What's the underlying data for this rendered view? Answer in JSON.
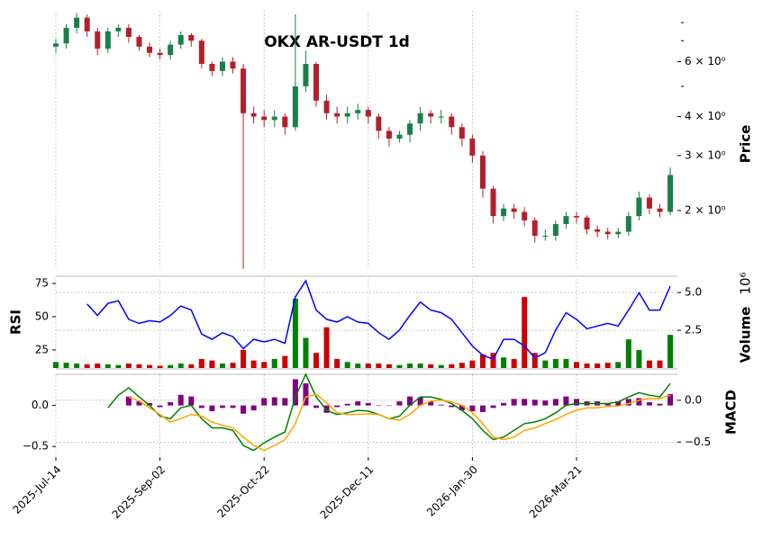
{
  "chart_data": [
    {
      "type": "candlestick",
      "title": "OKX AR-USDT 1d",
      "ylabel": "Price",
      "log_scale": true,
      "grid": true,
      "up_color": "#1a7f4a",
      "down_color": "#b3202a",
      "x": [
        "2025-Jul-14",
        "2025-Jul-19",
        "2025-Jul-24",
        "2025-Jul-29",
        "2025-Aug-03",
        "2025-Aug-08",
        "2025-Aug-13",
        "2025-Aug-18",
        "2025-Aug-23",
        "2025-Aug-28",
        "2025-Sep-02",
        "2025-Sep-07",
        "2025-Sep-12",
        "2025-Sep-17",
        "2025-Sep-22",
        "2025-Sep-27",
        "2025-Oct-02",
        "2025-Oct-07",
        "2025-Oct-12",
        "2025-Oct-17",
        "2025-Oct-22",
        "2025-Oct-27",
        "2025-Nov-01",
        "2025-Nov-06",
        "2025-Nov-11",
        "2025-Nov-16",
        "2025-Nov-21",
        "2025-Nov-26",
        "2025-Dec-01",
        "2025-Dec-06",
        "2025-Dec-11",
        "2025-Dec-16",
        "2025-Dec-21",
        "2025-Dec-26",
        "2025-Dec-31",
        "2026-Jan-05",
        "2026-Jan-10",
        "2026-Jan-15",
        "2026-Jan-20",
        "2026-Jan-25",
        "2026-Jan-30",
        "2026-Feb-04",
        "2026-Feb-09",
        "2026-Feb-14",
        "2026-Feb-19",
        "2026-Feb-24",
        "2026-Mar-01",
        "2026-Mar-06",
        "2026-Mar-11",
        "2026-Mar-16",
        "2026-Mar-21",
        "2026-Mar-26",
        "2026-Mar-31",
        "2026-Apr-05",
        "2026-Apr-10",
        "2026-Apr-15",
        "2026-Apr-20",
        "2026-Apr-25",
        "2026-Apr-30",
        "2026-May-05"
      ],
      "xticks": [
        "2025-Jul-14",
        "2025-Sep-02",
        "2025-Oct-22",
        "2025-Dec-11",
        "2026-Jan-30",
        "2026-Mar-21"
      ],
      "open": [
        6.7,
        6.86,
        7.7,
        8.3,
        7.5,
        6.6,
        7.5,
        7.7,
        7.2,
        6.7,
        6.4,
        6.3,
        6.8,
        7.3,
        7.0,
        5.9,
        5.6,
        6.0,
        5.7,
        4.1,
        4.0,
        3.9,
        4.0,
        3.7,
        5.0,
        5.9,
        4.5,
        4.1,
        4.0,
        4.1,
        4.2,
        4.0,
        3.6,
        3.4,
        3.5,
        3.8,
        4.1,
        4.0,
        4.0,
        3.7,
        3.4,
        3.0,
        2.35,
        1.92,
        2.03,
        1.98,
        1.86,
        1.66,
        1.66,
        1.81,
        1.92,
        1.9,
        1.74,
        1.71,
        1.68,
        1.71,
        1.92,
        2.2,
        2.03,
        1.98
      ],
      "high": [
        7.1,
        7.9,
        8.6,
        8.5,
        7.7,
        7.7,
        7.9,
        7.9,
        7.3,
        6.9,
        6.6,
        7.0,
        7.5,
        7.4,
        7.1,
        6.0,
        6.2,
        6.2,
        5.9,
        4.3,
        4.2,
        4.2,
        4.1,
        8.5,
        6.5,
        6.0,
        4.7,
        4.3,
        4.3,
        4.4,
        4.3,
        4.1,
        3.7,
        3.6,
        3.9,
        4.3,
        4.2,
        4.2,
        4.1,
        3.8,
        3.5,
        3.1,
        2.4,
        2.1,
        2.1,
        2.05,
        1.9,
        1.74,
        1.86,
        1.98,
        1.98,
        1.93,
        1.79,
        1.76,
        1.76,
        1.98,
        2.3,
        2.25,
        2.1,
        2.75
      ],
      "low": [
        6.4,
        6.6,
        7.4,
        7.2,
        6.3,
        6.4,
        7.2,
        6.9,
        6.5,
        6.2,
        6.1,
        6.1,
        6.6,
        6.7,
        5.7,
        5.4,
        5.4,
        5.5,
        1.3,
        3.8,
        3.7,
        3.7,
        3.5,
        3.6,
        4.8,
        4.3,
        3.9,
        3.8,
        3.8,
        3.9,
        3.8,
        3.4,
        3.2,
        3.3,
        3.3,
        3.6,
        3.8,
        3.8,
        3.5,
        3.2,
        2.85,
        2.2,
        1.82,
        1.85,
        1.88,
        1.78,
        1.58,
        1.6,
        1.6,
        1.75,
        1.82,
        1.68,
        1.64,
        1.62,
        1.63,
        1.66,
        1.86,
        1.95,
        1.9,
        1.93
      ],
      "close": [
        6.86,
        7.7,
        8.3,
        7.5,
        6.6,
        7.5,
        7.7,
        7.2,
        6.7,
        6.4,
        6.3,
        6.8,
        7.3,
        7.0,
        5.9,
        5.6,
        6.0,
        5.7,
        4.1,
        4.0,
        3.9,
        4.0,
        3.7,
        5.0,
        5.9,
        4.5,
        4.1,
        4.0,
        4.1,
        4.2,
        4.0,
        3.6,
        3.4,
        3.5,
        3.8,
        4.1,
        4.0,
        4.0,
        3.7,
        3.4,
        3.0,
        2.35,
        1.92,
        2.03,
        1.98,
        1.86,
        1.66,
        1.66,
        1.81,
        1.92,
        1.9,
        1.74,
        1.71,
        1.68,
        1.71,
        1.92,
        2.2,
        2.03,
        1.98,
        2.6
      ],
      "ylim": [
        1.29,
        8.73
      ],
      "yticks": [
        {
          "value": 2,
          "label": "2 × 10⁰"
        },
        {
          "value": 3,
          "label": "3 × 10⁰"
        },
        {
          "value": 4,
          "label": "4 × 10⁰"
        },
        {
          "value": 6,
          "label": "6 × 10⁰"
        }
      ],
      "yminor": [
        5,
        7,
        8
      ]
    },
    {
      "type": "rsi_volume",
      "ylabel": "RSI",
      "y2label": "Volume",
      "y2_offset": "10⁶",
      "color": "#0000ff",
      "up_color": "#008000",
      "down_color": "#cc0000",
      "values": [
        null,
        null,
        null,
        59.5,
        51,
        60,
        62,
        48,
        45,
        47,
        46,
        51,
        58,
        55,
        37,
        33,
        38,
        35,
        26,
        33,
        31,
        33,
        30,
        65,
        77,
        55,
        48,
        46,
        50,
        46,
        45,
        38,
        33,
        40,
        51,
        61,
        55,
        53,
        48,
        38,
        28,
        21,
        18,
        33,
        33,
        28,
        19,
        23,
        40,
        53,
        48,
        41,
        43,
        45,
        43,
        55,
        68,
        55,
        55,
        73
      ],
      "volume": [
        0.4,
        0.35,
        0.3,
        0.25,
        0.3,
        0.25,
        0.2,
        0.3,
        0.25,
        0.2,
        0.15,
        0.2,
        0.3,
        0.25,
        0.6,
        0.5,
        0.3,
        0.35,
        1.2,
        0.5,
        0.4,
        0.6,
        0.8,
        4.6,
        2.0,
        1.0,
        2.7,
        0.6,
        0.4,
        0.3,
        0.3,
        0.3,
        0.25,
        0.2,
        0.3,
        0.3,
        0.25,
        0.2,
        0.25,
        0.35,
        0.5,
        0.9,
        1.0,
        0.7,
        0.6,
        4.7,
        1.0,
        0.5,
        0.6,
        0.6,
        0.4,
        0.3,
        0.3,
        0.35,
        0.4,
        1.9,
        1.2,
        0.5,
        0.5,
        2.2
      ],
      "ylim": [
        11.4,
        78.4
      ],
      "yticks": [
        25,
        50,
        75
      ],
      "y2lim": [
        0,
        5.9
      ],
      "y2ticks": [
        {
          "value": 2.5,
          "label": "2.5"
        },
        {
          "value": 5,
          "label": "5.0"
        }
      ]
    },
    {
      "type": "macd",
      "y2label": "MACD",
      "hist_color": "#800080",
      "macd_color": "#008000",
      "signal_color": "#ffa500",
      "histogram": [
        null,
        null,
        null,
        null,
        null,
        null,
        null,
        0.11,
        0.05,
        0.03,
        -0.02,
        0.04,
        0.13,
        0.11,
        -0.03,
        -0.07,
        -0.03,
        -0.03,
        -0.1,
        -0.06,
        0.09,
        0.1,
        0.09,
        0.32,
        0.27,
        -0.03,
        -0.09,
        -0.02,
        0.02,
        0.05,
        0.03,
        0,
        0,
        0.05,
        0.11,
        0.1,
        0.05,
        0.01,
        -0.02,
        -0.06,
        -0.07,
        -0.08,
        -0.03,
        0.03,
        0.08,
        0.08,
        0.07,
        0.06,
        0.08,
        0.11,
        0.08,
        0.05,
        0.05,
        0.03,
        0.05,
        0.08,
        0.09,
        0.04,
        0.02,
        0.14
      ],
      "macd": [
        null,
        null,
        null,
        null,
        null,
        -0.09,
        0.06,
        0.15,
        0.04,
        -0.06,
        -0.19,
        -0.22,
        -0.09,
        -0.06,
        -0.22,
        -0.33,
        -0.33,
        -0.36,
        -0.54,
        -0.6,
        -0.51,
        -0.44,
        -0.38,
        0.04,
        0.31,
        0.04,
        -0.12,
        -0.17,
        -0.15,
        -0.12,
        -0.13,
        -0.17,
        -0.22,
        -0.19,
        -0.06,
        0.04,
        0.04,
        0.01,
        -0.04,
        -0.12,
        -0.22,
        -0.36,
        -0.47,
        -0.44,
        -0.36,
        -0.28,
        -0.26,
        -0.22,
        -0.15,
        -0.06,
        -0.04,
        -0.04,
        -0.04,
        -0.04,
        -0.02,
        0.04,
        0.09,
        0.06,
        0.04,
        0.2
      ],
      "signal": [
        null,
        null,
        null,
        null,
        null,
        null,
        null,
        0.04,
        -0.01,
        -0.09,
        -0.17,
        -0.26,
        -0.22,
        -0.17,
        -0.19,
        -0.26,
        -0.3,
        -0.33,
        -0.44,
        -0.54,
        -0.6,
        -0.54,
        -0.47,
        -0.28,
        0.04,
        0.07,
        -0.03,
        -0.15,
        -0.17,
        -0.17,
        -0.16,
        -0.17,
        -0.22,
        -0.24,
        -0.17,
        -0.06,
        -0.01,
        0,
        -0.02,
        -0.06,
        -0.15,
        -0.28,
        -0.44,
        -0.47,
        -0.44,
        -0.36,
        -0.33,
        -0.28,
        -0.23,
        -0.17,
        -0.12,
        -0.09,
        -0.09,
        -0.07,
        -0.07,
        -0.04,
        0,
        0.02,
        0.02,
        0.06
      ],
      "ylim": [
        -0.63,
        0.38
      ],
      "yticks": [
        {
          "value": 0,
          "label": "0.0"
        },
        {
          "value": -0.5,
          "label": "−0.5"
        }
      ],
      "y2lim": [
        -0.68,
        0.31
      ],
      "y2ticks": [
        {
          "value": 0,
          "label": "0.0"
        },
        {
          "value": -0.5,
          "label": "−0.5"
        }
      ]
    }
  ]
}
